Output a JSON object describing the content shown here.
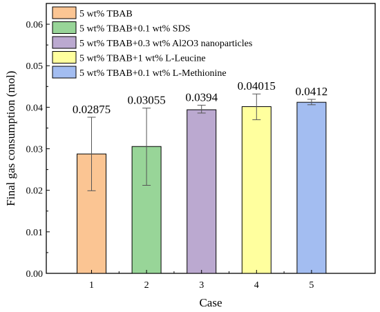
{
  "chart_data": {
    "type": "bar",
    "categories": [
      "1",
      "2",
      "3",
      "4",
      "5"
    ],
    "values": [
      0.02875,
      0.03055,
      0.0394,
      0.04015,
      0.0412
    ],
    "error_low": [
      0.0199,
      0.0212,
      0.0386,
      0.037,
      0.0406
    ],
    "error_high": [
      0.0376,
      0.0398,
      0.0405,
      0.0432,
      0.0419
    ],
    "data_labels": [
      "0.02875",
      "0.03055",
      "0.0394",
      "0.04015",
      "0.0412"
    ],
    "series_names": [
      "5 wt% TBAB",
      "5 wt% TBAB+0.1 wt% SDS",
      "5 wt% TBAB+0.3 wt% Al2O3 nanoparticles",
      "5 wt% TBAB+1 wt% L-Leucine",
      "5 wt% TBAB+0.1 wt% L-Methionine"
    ],
    "colors": [
      "#FBC593",
      "#98D598",
      "#BBA9D0",
      "#FFFF9E",
      "#A3BDF1"
    ],
    "xlabel": "Case",
    "ylabel": "Final gas consumption (mol)",
    "ylim": [
      0,
      0.065
    ],
    "yticks": [
      "0.00",
      "0.01",
      "0.02",
      "0.03",
      "0.04",
      "0.05",
      "0.06"
    ],
    "legend_position": "top-left",
    "grid": false
  }
}
